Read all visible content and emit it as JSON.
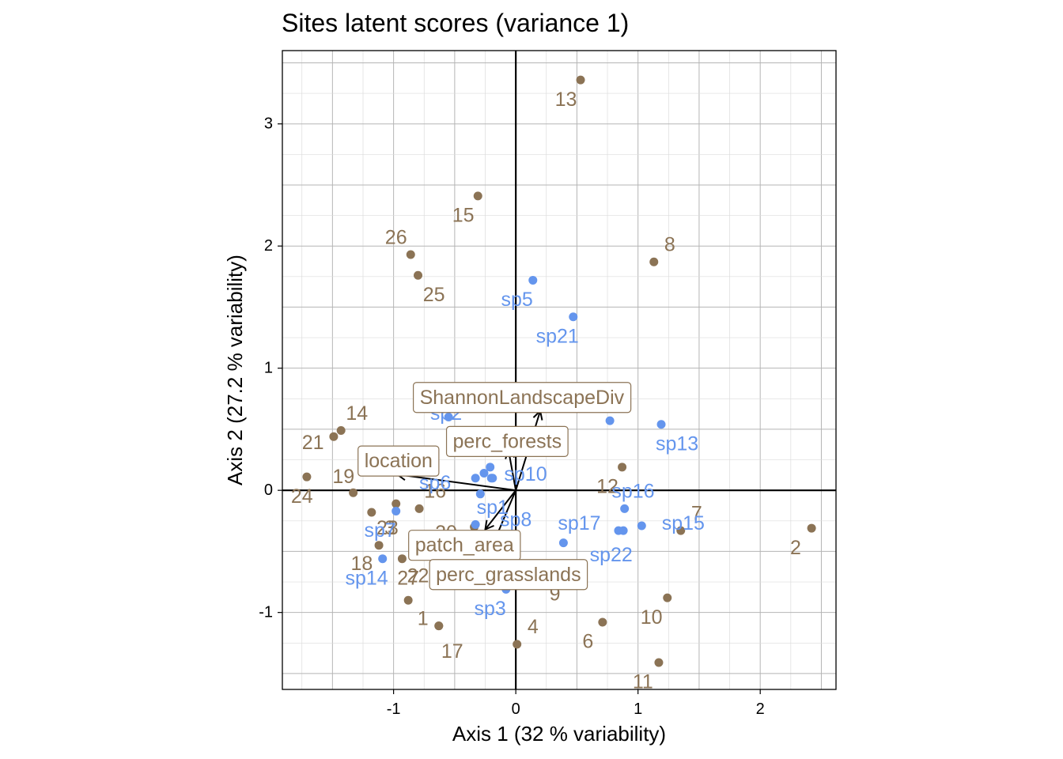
{
  "chart_data": {
    "type": "scatter",
    "title": "Sites latent scores (variance 1)",
    "xlabel": "Axis 1 (32 % variability)",
    "ylabel": "Axis 2 (27.2 % variability)",
    "xlim": [
      -1.91,
      2.62
    ],
    "ylim": [
      -1.63,
      3.6
    ],
    "x_ticks": [
      -1,
      0,
      1,
      2
    ],
    "x_tick_labels": [
      "-1",
      "0",
      "1",
      "2"
    ],
    "y_ticks": [
      -1,
      0,
      1,
      2,
      3
    ],
    "y_tick_labels": [
      "-1",
      "0",
      "1",
      "2",
      "3"
    ],
    "grid": true,
    "colors": {
      "sites": "#8B7355",
      "species": "#6495ED",
      "arrows": "#000000",
      "zero_lines": "#000000"
    },
    "sites": [
      {
        "label": "1",
        "x": -0.63,
        "y": -1.11,
        "lx": -0.76,
        "ly": -1.05
      },
      {
        "label": "2",
        "x": 2.42,
        "y": -0.31,
        "lx": 2.29,
        "ly": -0.47
      },
      {
        "label": "3",
        "x": -0.98,
        "y": -0.11,
        "lx": -1.03,
        "ly": -0.31
      },
      {
        "label": "4",
        "x": 0.01,
        "y": -1.26,
        "lx": 0.14,
        "ly": -1.12
      },
      {
        "label": "6",
        "x": 0.71,
        "y": -1.08,
        "lx": 0.59,
        "ly": -1.24
      },
      {
        "label": "7",
        "x": 1.35,
        "y": -0.33,
        "lx": 1.48,
        "ly": -0.19
      },
      {
        "label": "8",
        "x": 1.13,
        "y": 1.87,
        "lx": 1.26,
        "ly": 2.01
      },
      {
        "label": "9",
        "x": 0.25,
        "y": -0.75,
        "lx": 0.32,
        "ly": -0.85
      },
      {
        "label": "10",
        "x": 1.24,
        "y": -0.88,
        "lx": 1.11,
        "ly": -1.04
      },
      {
        "label": "11",
        "x": 1.17,
        "y": -1.41,
        "lx": 1.04,
        "ly": -1.57
      },
      {
        "label": "12",
        "x": 0.87,
        "y": 0.19,
        "lx": 0.75,
        "ly": 0.03
      },
      {
        "label": "13",
        "x": 0.53,
        "y": 3.36,
        "lx": 0.41,
        "ly": 3.2
      },
      {
        "label": "14",
        "x": -1.43,
        "y": 0.49,
        "lx": -1.3,
        "ly": 0.63
      },
      {
        "label": "15",
        "x": -0.31,
        "y": 2.41,
        "lx": -0.43,
        "ly": 2.25
      },
      {
        "label": "16",
        "x": -0.79,
        "y": -0.15,
        "lx": -0.66,
        "ly": -0.01
      },
      {
        "label": "17",
        "x": -0.63,
        "y": -1.11,
        "lx": -0.52,
        "ly": -1.32
      },
      {
        "label": "18",
        "x": -1.12,
        "y": -0.45,
        "lx": -1.26,
        "ly": -0.6
      },
      {
        "label": "19",
        "x": -1.33,
        "y": -0.02,
        "lx": -1.41,
        "ly": 0.11
      },
      {
        "label": "20",
        "x": -0.34,
        "y": -0.3,
        "lx": -0.57,
        "ly": -0.35
      },
      {
        "label": "21",
        "x": -1.49,
        "y": 0.44,
        "lx": -1.66,
        "ly": 0.39
      },
      {
        "label": "22",
        "x": -0.93,
        "y": -0.56,
        "lx": -0.8,
        "ly": -0.7
      },
      {
        "label": "23",
        "x": -1.18,
        "y": -0.18,
        "lx": -1.05,
        "ly": -0.31
      },
      {
        "label": "24",
        "x": -1.71,
        "y": 0.11,
        "lx": -1.75,
        "ly": -0.05
      },
      {
        "label": "25",
        "x": -0.8,
        "y": 1.76,
        "lx": -0.67,
        "ly": 1.6
      },
      {
        "label": "26",
        "x": -0.86,
        "y": 1.93,
        "lx": -0.98,
        "ly": 2.07
      },
      {
        "label": "27",
        "x": -0.88,
        "y": -0.9,
        "lx": -0.88,
        "ly": -0.72
      }
    ],
    "species": [
      {
        "label": "sp1",
        "x": -0.29,
        "y": -0.03,
        "lx": -0.19,
        "ly": -0.14
      },
      {
        "label": "sp2",
        "x": -0.55,
        "y": 0.6,
        "lx": -0.57,
        "ly": 0.63
      },
      {
        "label": "sp3",
        "x": -0.08,
        "y": -0.81,
        "lx": -0.21,
        "ly": -0.97
      },
      {
        "label": "sp5",
        "x": 0.14,
        "y": 1.72,
        "lx": 0.01,
        "ly": 1.56
      },
      {
        "label": "sp6",
        "x": -0.33,
        "y": 0.1,
        "lx": -0.66,
        "ly": 0.06
      },
      {
        "label": "sp7",
        "x": -0.98,
        "y": -0.17,
        "lx": -1.11,
        "ly": -0.33
      },
      {
        "label": "sp8",
        "x": -0.33,
        "y": -0.28,
        "lx": 0.0,
        "ly": -0.24
      },
      {
        "label": "sp10",
        "x": -0.19,
        "y": 0.1,
        "lx": 0.08,
        "ly": 0.13
      },
      {
        "label": "sp13",
        "x": 1.19,
        "y": 0.54,
        "lx": 1.32,
        "ly": 0.38
      },
      {
        "label": "sp14",
        "x": -1.09,
        "y": -0.56,
        "lx": -1.22,
        "ly": -0.72
      },
      {
        "label": "sp15",
        "x": 1.03,
        "y": -0.29,
        "lx": 1.37,
        "ly": -0.27
      },
      {
        "label": "sp16",
        "x": 0.89,
        "y": -0.15,
        "lx": 0.96,
        "ly": -0.01
      },
      {
        "label": "sp17",
        "x": 0.39,
        "y": -0.43,
        "lx": 0.52,
        "ly": -0.27
      },
      {
        "label": "sp21",
        "x": 0.47,
        "y": 1.42,
        "lx": 0.34,
        "ly": 1.26
      },
      {
        "label": "sp22",
        "x": 0.88,
        "y": -0.33,
        "lx": 0.78,
        "ly": -0.53
      }
    ],
    "species_extra_points": [
      {
        "x": 0.77,
        "y": 0.57
      },
      {
        "x": 0.84,
        "y": -0.33
      },
      {
        "x": -0.21,
        "y": 0.19
      },
      {
        "x": -0.26,
        "y": 0.14
      },
      {
        "x": -0.2,
        "y": 0.1
      }
    ],
    "variables": [
      {
        "label": "ShannonLandscapeDiv",
        "x": 0.2,
        "y": 0.65,
        "lx": 0.05,
        "ly": 0.76
      },
      {
        "label": "perc_forests",
        "x": -0.06,
        "y": 0.33,
        "lx": -0.07,
        "ly": 0.4
      },
      {
        "label": "location",
        "x": -0.97,
        "y": 0.13,
        "lx": -0.96,
        "ly": 0.24
      },
      {
        "label": "patch_area",
        "x": -0.25,
        "y": -0.32,
        "lx": -0.42,
        "ly": -0.45
      },
      {
        "label": "perc_grasslands",
        "x": -0.19,
        "y": -0.45,
        "lx": -0.06,
        "ly": -0.69
      }
    ]
  }
}
